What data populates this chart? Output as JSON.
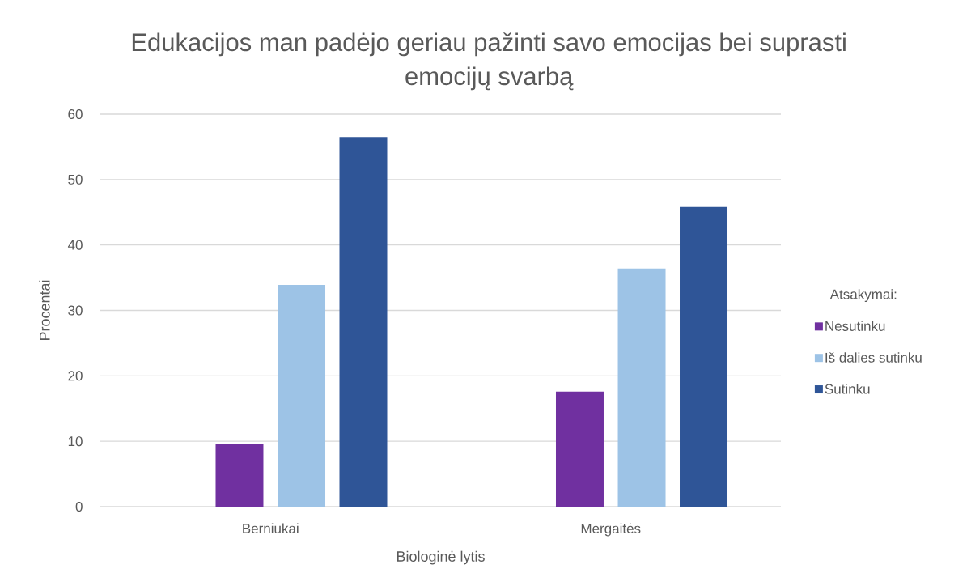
{
  "chart_data": {
    "type": "bar",
    "title": "Edukacijos man padėjo geriau pažinti savo emocijas bei suprasti emocijų svarbą",
    "xlabel": "Biologinė lytis",
    "ylabel": "Procentai",
    "legend_title": "Atsakymai:",
    "categories": [
      "Berniukai",
      "Mergaitės"
    ],
    "series": [
      {
        "name": "Nesutinku",
        "color": "#7030a0",
        "values": [
          9.6,
          17.6
        ]
      },
      {
        "name": "Iš dalies sutinku",
        "color": "#9dc3e6",
        "values": [
          33.9,
          36.4
        ]
      },
      {
        "name": "Sutinku",
        "color": "#2f5597",
        "values": [
          56.5,
          45.8
        ]
      }
    ],
    "ylim": [
      0,
      60
    ],
    "yticks": [
      0,
      10,
      20,
      30,
      40,
      50,
      60
    ],
    "grid": "y",
    "legend": "right"
  }
}
